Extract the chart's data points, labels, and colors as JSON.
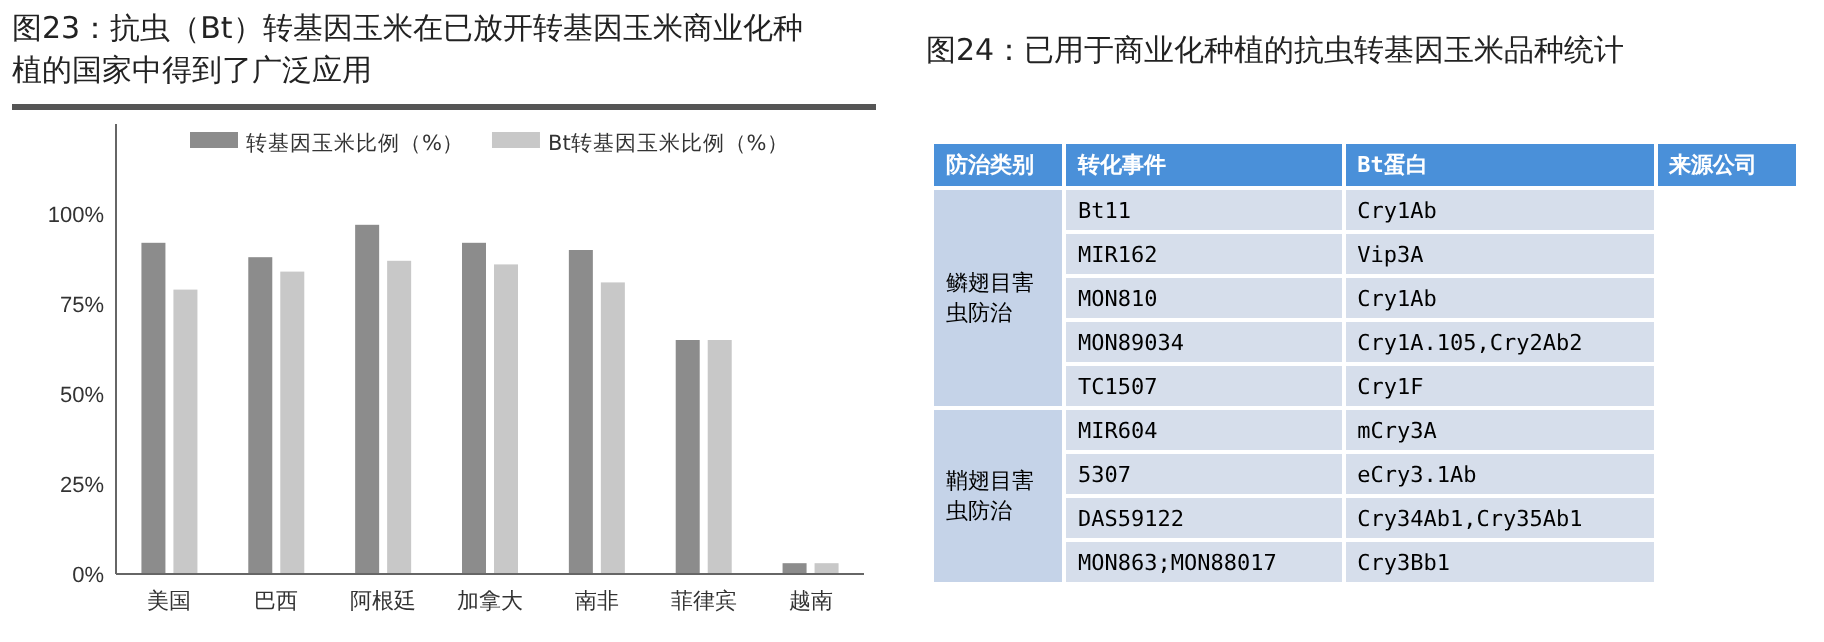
{
  "chart_data": [
    {
      "type": "bar",
      "title": "图23：抗虫（Bt）转基因玉米在已放开转基因玉米商业化种植的国家中得到了广泛应用",
      "categories": [
        "美国",
        "巴西",
        "阿根廷",
        "加拿大",
        "南非",
        "菲律宾",
        "越南"
      ],
      "series": [
        {
          "name": "转基因玉米比例（%）",
          "color": "#8c8c8c",
          "values": [
            92,
            88,
            97,
            92,
            90,
            65,
            3
          ]
        },
        {
          "name": "Bt转基因玉米比例（%）",
          "color": "#c8c8c8",
          "values": [
            79,
            84,
            87,
            86,
            81,
            65,
            3
          ]
        }
      ],
      "ylim": [
        0,
        125
      ],
      "yticks": [
        {
          "value": 0,
          "label": "0%"
        },
        {
          "value": 25,
          "label": "25%"
        },
        {
          "value": 50,
          "label": "50%"
        },
        {
          "value": 75,
          "label": "75%"
        },
        {
          "value": 100,
          "label": "100%"
        }
      ],
      "grid": false,
      "legend": "top"
    },
    {
      "type": "other",
      "title": "图24：已用于商业化种植的抗虫转基因玉米品种统计",
      "annotations": [
        "防治类别",
        "转化事件",
        "Bt蛋白",
        "来源公司",
        "鳞翅目害虫防治",
        "鞘翅目害虫防治",
        "Bt11",
        "Cry1Ab",
        "MIR162",
        "Vip3A",
        "MON810",
        "Cry1Ab",
        "MON89034",
        "Cry1A.105,Cry2Ab2",
        "TC1507",
        "Cry1F",
        "MIR604",
        "mCry3A",
        "5307",
        "eCry3.1Ab",
        "DAS59122",
        "Cry34Ab1,Cry35Ab1",
        "MON863;MON88017",
        "Cry3Bb1"
      ]
    }
  ]
}
